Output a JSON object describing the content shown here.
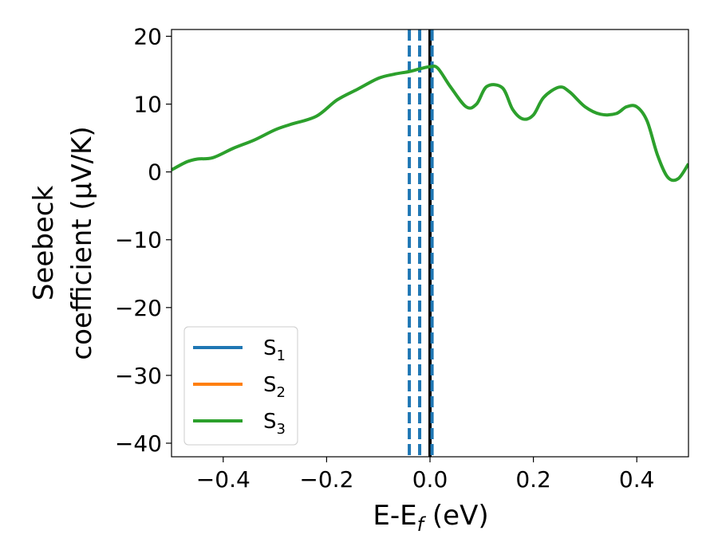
{
  "chart_data": {
    "type": "line",
    "xlabel": "E-E",
    "xlabel_sub": "f",
    "xlabel_unit": " (eV)",
    "ylabel_line1": "Seebeck",
    "ylabel_line2": "coefficient  (μV/K)",
    "xlim": [
      -0.5,
      0.5
    ],
    "ylim": [
      -42,
      21
    ],
    "xticks": [
      -0.4,
      -0.2,
      0.0,
      0.2,
      0.4
    ],
    "xtick_labels": [
      "−0.4",
      "−0.2",
      "0.0",
      "0.2",
      "0.4"
    ],
    "yticks": [
      -40,
      -30,
      -20,
      -10,
      0,
      10,
      20
    ],
    "ytick_labels": [
      "−40",
      "−30",
      "−20",
      "−10",
      "0",
      "10",
      "20"
    ],
    "grid": false,
    "legend_position": "lower-left",
    "series": [
      {
        "name": "S",
        "sub": "1",
        "color": "#1f77b4",
        "x": [],
        "y": []
      },
      {
        "name": "S",
        "sub": "2",
        "color": "#ff7f0e",
        "x": [],
        "y": []
      },
      {
        "name": "S",
        "sub": "3",
        "color": "#2ca02c",
        "x": [
          -0.5,
          -0.47,
          -0.45,
          -0.42,
          -0.38,
          -0.34,
          -0.3,
          -0.27,
          -0.22,
          -0.18,
          -0.14,
          -0.1,
          -0.07,
          -0.04,
          -0.02,
          0.0,
          0.015,
          0.04,
          0.07,
          0.09,
          0.11,
          0.14,
          0.16,
          0.18,
          0.2,
          0.22,
          0.25,
          0.27,
          0.3,
          0.33,
          0.36,
          0.38,
          0.4,
          0.42,
          0.44,
          0.46,
          0.48,
          0.5
        ],
        "y": [
          0.3,
          1.5,
          1.9,
          2.1,
          3.5,
          4.7,
          6.2,
          7.0,
          8.2,
          10.6,
          12.2,
          13.8,
          14.4,
          14.8,
          15.2,
          15.5,
          15.3,
          12.5,
          9.6,
          10.0,
          12.6,
          12.4,
          9.2,
          7.8,
          8.4,
          11.0,
          12.5,
          11.8,
          9.6,
          8.5,
          8.6,
          9.6,
          9.6,
          7.5,
          2.5,
          -0.8,
          -1.0,
          1.2
        ]
      }
    ],
    "vlines": [
      {
        "x": -0.04,
        "color": "#1f77b4",
        "style": "dashed"
      },
      {
        "x": -0.02,
        "color": "#1f77b4",
        "style": "dashed"
      },
      {
        "x": 0.0,
        "color": "#000000",
        "style": "solid"
      },
      {
        "x": 0.004,
        "color": "#1f77b4",
        "style": "dashed"
      }
    ]
  }
}
